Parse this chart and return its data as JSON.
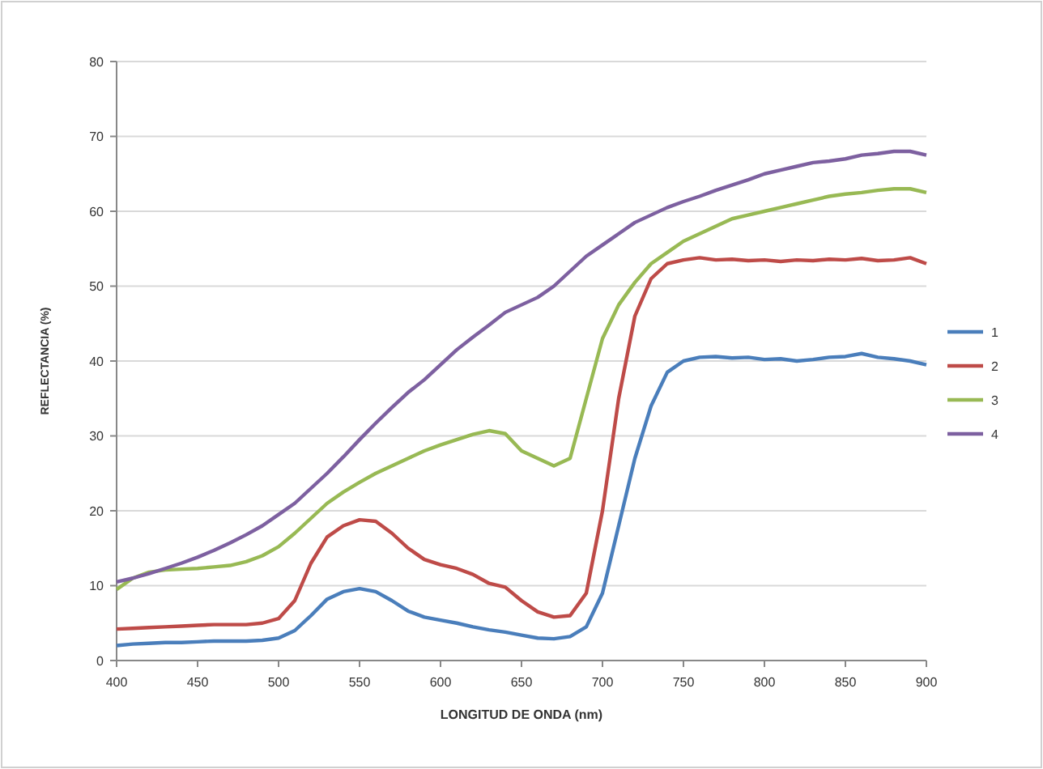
{
  "chart_data": {
    "type": "line",
    "xlabel": "LONGITUD DE ONDA  (nm)",
    "ylabel": "REFLECTANCIA (%)",
    "x": [
      400,
      410,
      420,
      430,
      440,
      450,
      460,
      470,
      480,
      490,
      500,
      510,
      520,
      530,
      540,
      550,
      560,
      570,
      580,
      590,
      600,
      610,
      620,
      630,
      640,
      650,
      660,
      670,
      680,
      690,
      700,
      710,
      720,
      730,
      740,
      750,
      760,
      770,
      780,
      790,
      800,
      810,
      820,
      830,
      840,
      850,
      860,
      870,
      880,
      890,
      900
    ],
    "series": [
      {
        "name": "1",
        "color": "#4a7ebb",
        "values": [
          2.0,
          2.2,
          2.3,
          2.4,
          2.4,
          2.5,
          2.6,
          2.6,
          2.6,
          2.7,
          3.0,
          4.0,
          6.0,
          8.2,
          9.2,
          9.6,
          9.2,
          8.0,
          6.6,
          5.8,
          5.4,
          5.0,
          4.5,
          4.1,
          3.8,
          3.4,
          3.0,
          2.9,
          3.2,
          4.5,
          9,
          18,
          27,
          34,
          38.5,
          40,
          40.5,
          40.6,
          40.4,
          40.5,
          40.2,
          40.3,
          40.0,
          40.2,
          40.5,
          40.6,
          41.0,
          40.5,
          40.3,
          40.0,
          39.5
        ]
      },
      {
        "name": "2",
        "color": "#be4b48",
        "values": [
          4.2,
          4.3,
          4.4,
          4.5,
          4.6,
          4.7,
          4.8,
          4.8,
          4.8,
          5.0,
          5.6,
          8,
          13,
          16.5,
          18,
          18.8,
          18.6,
          17,
          15,
          13.5,
          12.8,
          12.3,
          11.5,
          10.3,
          9.8,
          8,
          6.5,
          5.8,
          6,
          9,
          20,
          35,
          46,
          51,
          53,
          53.5,
          53.8,
          53.5,
          53.6,
          53.4,
          53.5,
          53.3,
          53.5,
          53.4,
          53.6,
          53.5,
          53.7,
          53.4,
          53.5,
          53.8,
          53
        ]
      },
      {
        "name": "3",
        "color": "#98b954",
        "values": [
          9.5,
          11,
          11.8,
          12.1,
          12.2,
          12.3,
          12.5,
          12.7,
          13.2,
          14,
          15.2,
          17,
          19,
          21,
          22.5,
          23.8,
          25,
          26,
          27,
          28,
          28.8,
          29.5,
          30.2,
          30.7,
          30.3,
          28,
          27,
          26,
          27,
          35,
          43,
          47.5,
          50.5,
          53,
          54.5,
          56,
          57,
          58,
          59,
          59.5,
          60,
          60.5,
          61,
          61.5,
          62,
          62.3,
          62.5,
          62.8,
          63,
          63,
          62.5
        ]
      },
      {
        "name": "4",
        "color": "#7d60a0",
        "values": [
          10.5,
          11,
          11.6,
          12.3,
          13,
          13.8,
          14.7,
          15.7,
          16.8,
          18,
          19.5,
          21,
          23,
          25,
          27.2,
          29.5,
          31.7,
          33.8,
          35.8,
          37.5,
          39.5,
          41.5,
          43.2,
          44.8,
          46.5,
          47.5,
          48.5,
          50,
          52,
          54,
          55.5,
          57,
          58.5,
          59.5,
          60.5,
          61.3,
          62,
          62.8,
          63.5,
          64.2,
          65,
          65.5,
          66,
          66.5,
          66.7,
          67,
          67.5,
          67.7,
          68,
          68,
          67.5
        ]
      }
    ],
    "xlim": [
      400,
      900
    ],
    "xticks": [
      400,
      450,
      500,
      550,
      600,
      650,
      700,
      750,
      800,
      850,
      900
    ],
    "ylim": [
      0,
      80
    ],
    "yticks": [
      0,
      10,
      20,
      30,
      40,
      50,
      60,
      70,
      80
    ],
    "grid": "y",
    "legend": "right",
    "marker": "none",
    "line_style": "solid"
  }
}
